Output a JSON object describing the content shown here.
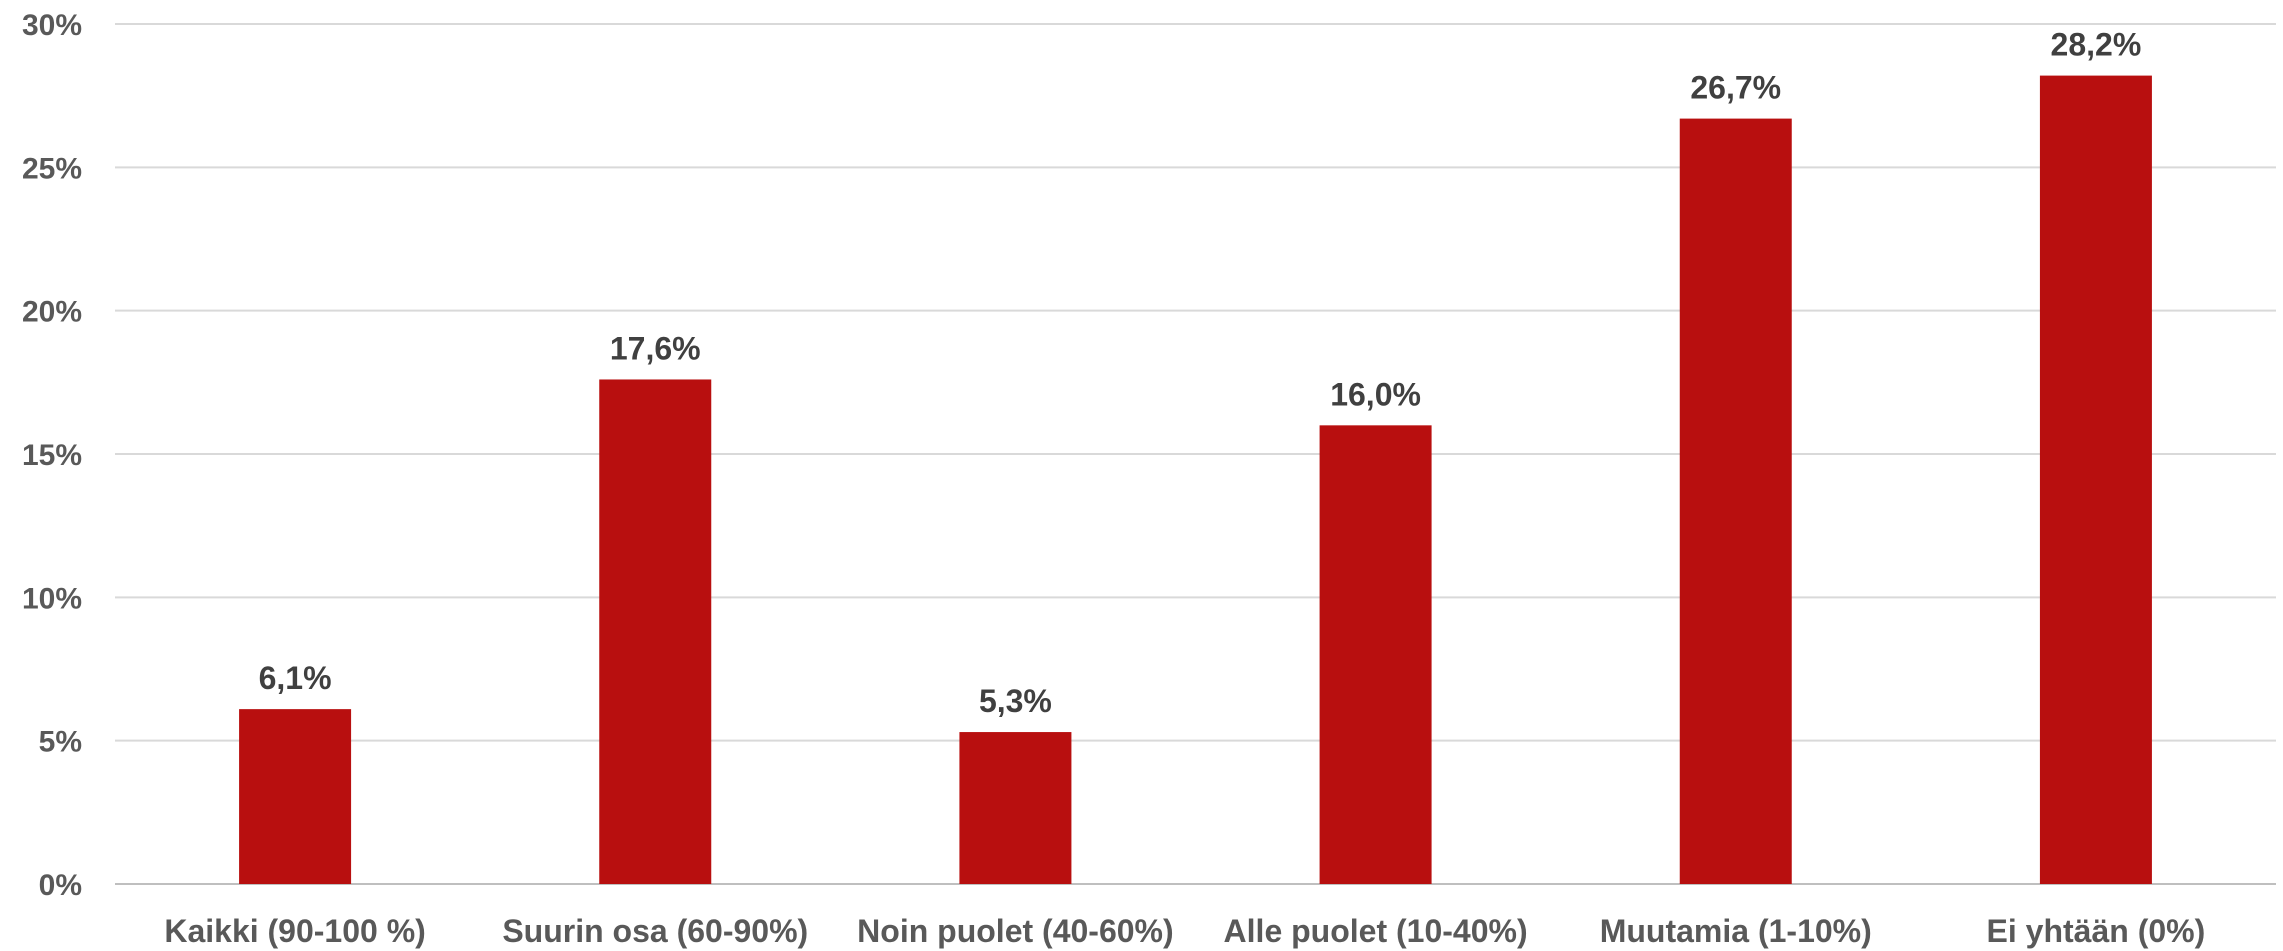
{
  "chart_data": {
    "type": "bar",
    "categories": [
      "Kaikki (90-100 %)",
      "Suurin osa (60-90%)",
      "Noin puolet (40-60%)",
      "Alle puolet (10-40%)",
      "Muutamia (1-10%)",
      "Ei yhtään (0%)"
    ],
    "values": [
      6.1,
      17.6,
      5.3,
      16.0,
      26.7,
      28.2
    ],
    "data_labels": [
      "6,1%",
      "17,6%",
      "5,3%",
      "16,0%",
      "26,7%",
      "28,2%"
    ],
    "y_ticks": [
      "0%",
      "5%",
      "10%",
      "15%",
      "20%",
      "25%",
      "30%"
    ],
    "ylim": [
      0,
      30
    ],
    "grid": true,
    "legend": "none",
    "bar_color": "#b80f0f"
  }
}
